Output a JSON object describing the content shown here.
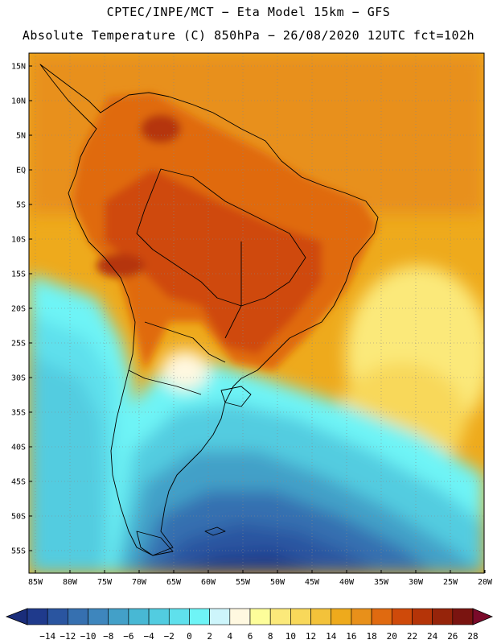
{
  "header": {
    "line1": "CPTEC/INPE/MCT −  Eta Model 15km − GFS",
    "line2": "Absolute Temperature (C) 850hPa − 26/08/2020 12UTC fct=102h"
  },
  "map": {
    "lat_labels": [
      "15N",
      "10N",
      "5N",
      "EQ",
      "5S",
      "10S",
      "15S",
      "20S",
      "25S",
      "30S",
      "35S",
      "40S",
      "45S",
      "50S",
      "55S"
    ],
    "lon_labels": [
      "85W",
      "80W",
      "75W",
      "70W",
      "65W",
      "60W",
      "55W",
      "50W",
      "45W",
      "40W",
      "35W",
      "30W",
      "25W",
      "20W"
    ],
    "lat_range": [
      -58,
      17
    ],
    "lon_range": [
      -86,
      -20
    ]
  },
  "colorbar": {
    "labels": [
      "−14",
      "−12",
      "−10",
      "−8",
      "−6",
      "−4",
      "−2",
      "0",
      "2",
      "4",
      "6",
      "8",
      "10",
      "12",
      "14",
      "16",
      "18",
      "20",
      "22",
      "24",
      "26",
      "28"
    ],
    "colors": [
      "#1f3a8c",
      "#2a55a0",
      "#3670b0",
      "#3e86bd",
      "#43a0c8",
      "#48b8d4",
      "#52cce0",
      "#5fe0ec",
      "#6ef4f6",
      "#cdf5fb",
      "#fff8e0",
      "#fdfd9a",
      "#fbe97a",
      "#f8d85a",
      "#f3c23a",
      "#eeaa1c",
      "#e8901a",
      "#e06a10",
      "#cf4a0a",
      "#b53408",
      "#96240a",
      "#7a1410"
    ],
    "under_color": "#1a2d7a",
    "over_color": "#7a0a2a"
  }
}
